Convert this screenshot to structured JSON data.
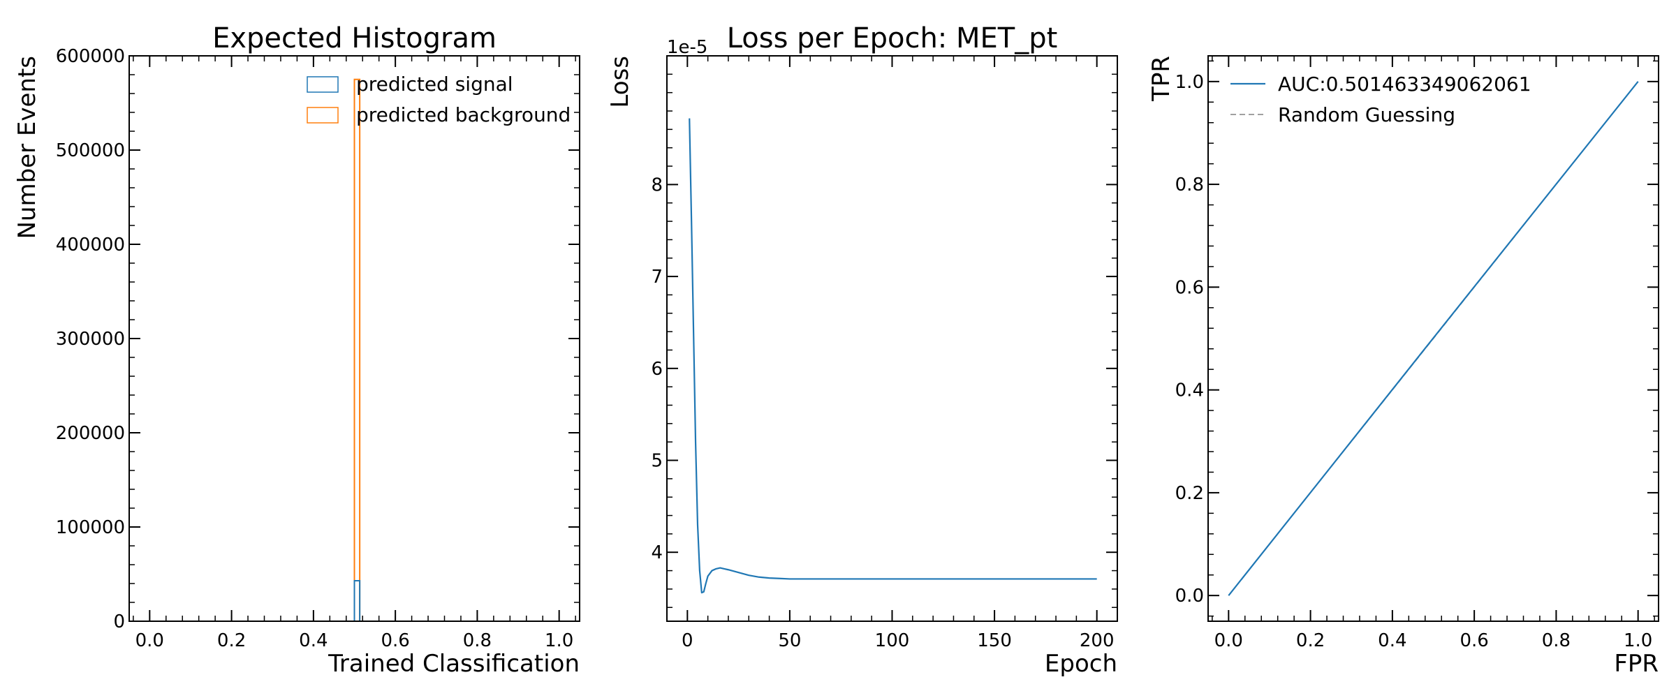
{
  "chart_data": [
    {
      "type": "histogram",
      "title": "Expected Histogram",
      "xlabel": "Trained Classification",
      "ylabel": "Number Events",
      "xlim": [
        -0.05,
        1.05
      ],
      "ylim": [
        0,
        600000
      ],
      "xticks": [
        0.0,
        0.2,
        0.4,
        0.6,
        0.8,
        1.0
      ],
      "yticks": [
        0,
        100000,
        200000,
        300000,
        400000,
        500000,
        600000
      ],
      "xtick_labels": [
        "0.0",
        "0.2",
        "0.4",
        "0.6",
        "0.8",
        "1.0"
      ],
      "ytick_labels": [
        "0",
        "100000",
        "200000",
        "300000",
        "400000",
        "500000",
        "600000"
      ],
      "legend_position": "top-right",
      "series": [
        {
          "name": "predicted signal",
          "color": "#1f77b4",
          "style": "step",
          "bins": [
            {
              "x0": 0.5,
              "x1": 0.513,
              "count": 43000
            }
          ]
        },
        {
          "name": "predicted background",
          "color": "#ff7f0e",
          "style": "step",
          "bins": [
            {
              "x0": 0.5,
              "x1": 0.513,
              "count": 575000
            }
          ]
        }
      ]
    },
    {
      "type": "line",
      "title": "Loss per Epoch: MET_pt",
      "xlabel": "Epoch",
      "ylabel": "Loss",
      "offset_text": "1e-5",
      "xlim": [
        -10,
        210
      ],
      "ylim": [
        3.25,
        9.4
      ],
      "xticks": [
        0,
        50,
        100,
        150,
        200
      ],
      "yticks": [
        4,
        5,
        6,
        7,
        8
      ],
      "xtick_labels": [
        "0",
        "50",
        "100",
        "150",
        "200"
      ],
      "ytick_labels": [
        "4",
        "5",
        "6",
        "7",
        "8"
      ],
      "series": [
        {
          "color": "#1f77b4",
          "x": [
            1,
            2,
            3,
            4,
            5,
            6,
            7,
            8,
            9,
            10,
            12,
            14,
            16,
            18,
            20,
            25,
            30,
            35,
            40,
            45,
            50,
            60,
            70,
            80,
            100,
            120,
            150,
            180,
            200
          ],
          "y": [
            8.72,
            7.6,
            6.4,
            5.2,
            4.3,
            3.8,
            3.56,
            3.57,
            3.66,
            3.74,
            3.8,
            3.82,
            3.83,
            3.82,
            3.81,
            3.78,
            3.75,
            3.73,
            3.72,
            3.715,
            3.71,
            3.71,
            3.71,
            3.71,
            3.71,
            3.71,
            3.71,
            3.71,
            3.71
          ]
        }
      ]
    },
    {
      "type": "line",
      "title": "",
      "xlabel": "FPR",
      "ylabel": "TPR",
      "xlim": [
        -0.05,
        1.05
      ],
      "ylim": [
        -0.05,
        1.05
      ],
      "xticks": [
        0.0,
        0.2,
        0.4,
        0.6,
        0.8,
        1.0
      ],
      "yticks": [
        0.0,
        0.2,
        0.4,
        0.6,
        0.8,
        1.0
      ],
      "xtick_labels": [
        "0.0",
        "0.2",
        "0.4",
        "0.6",
        "0.8",
        "1.0"
      ],
      "ytick_labels": [
        "0.0",
        "0.2",
        "0.4",
        "0.6",
        "0.8",
        "1.0"
      ],
      "legend_position": "top-left",
      "series": [
        {
          "name": "AUC:0.501463349062061",
          "color": "#1f77b4",
          "style": "solid",
          "x": [
            0.0,
            0.5,
            1.0
          ],
          "y": [
            0.0,
            0.501,
            1.0
          ]
        },
        {
          "name": "Random Guessing",
          "color": "#808080",
          "style": "dashed",
          "x": [
            0.0,
            1.0
          ],
          "y": [
            0.0,
            1.0
          ]
        }
      ]
    }
  ]
}
